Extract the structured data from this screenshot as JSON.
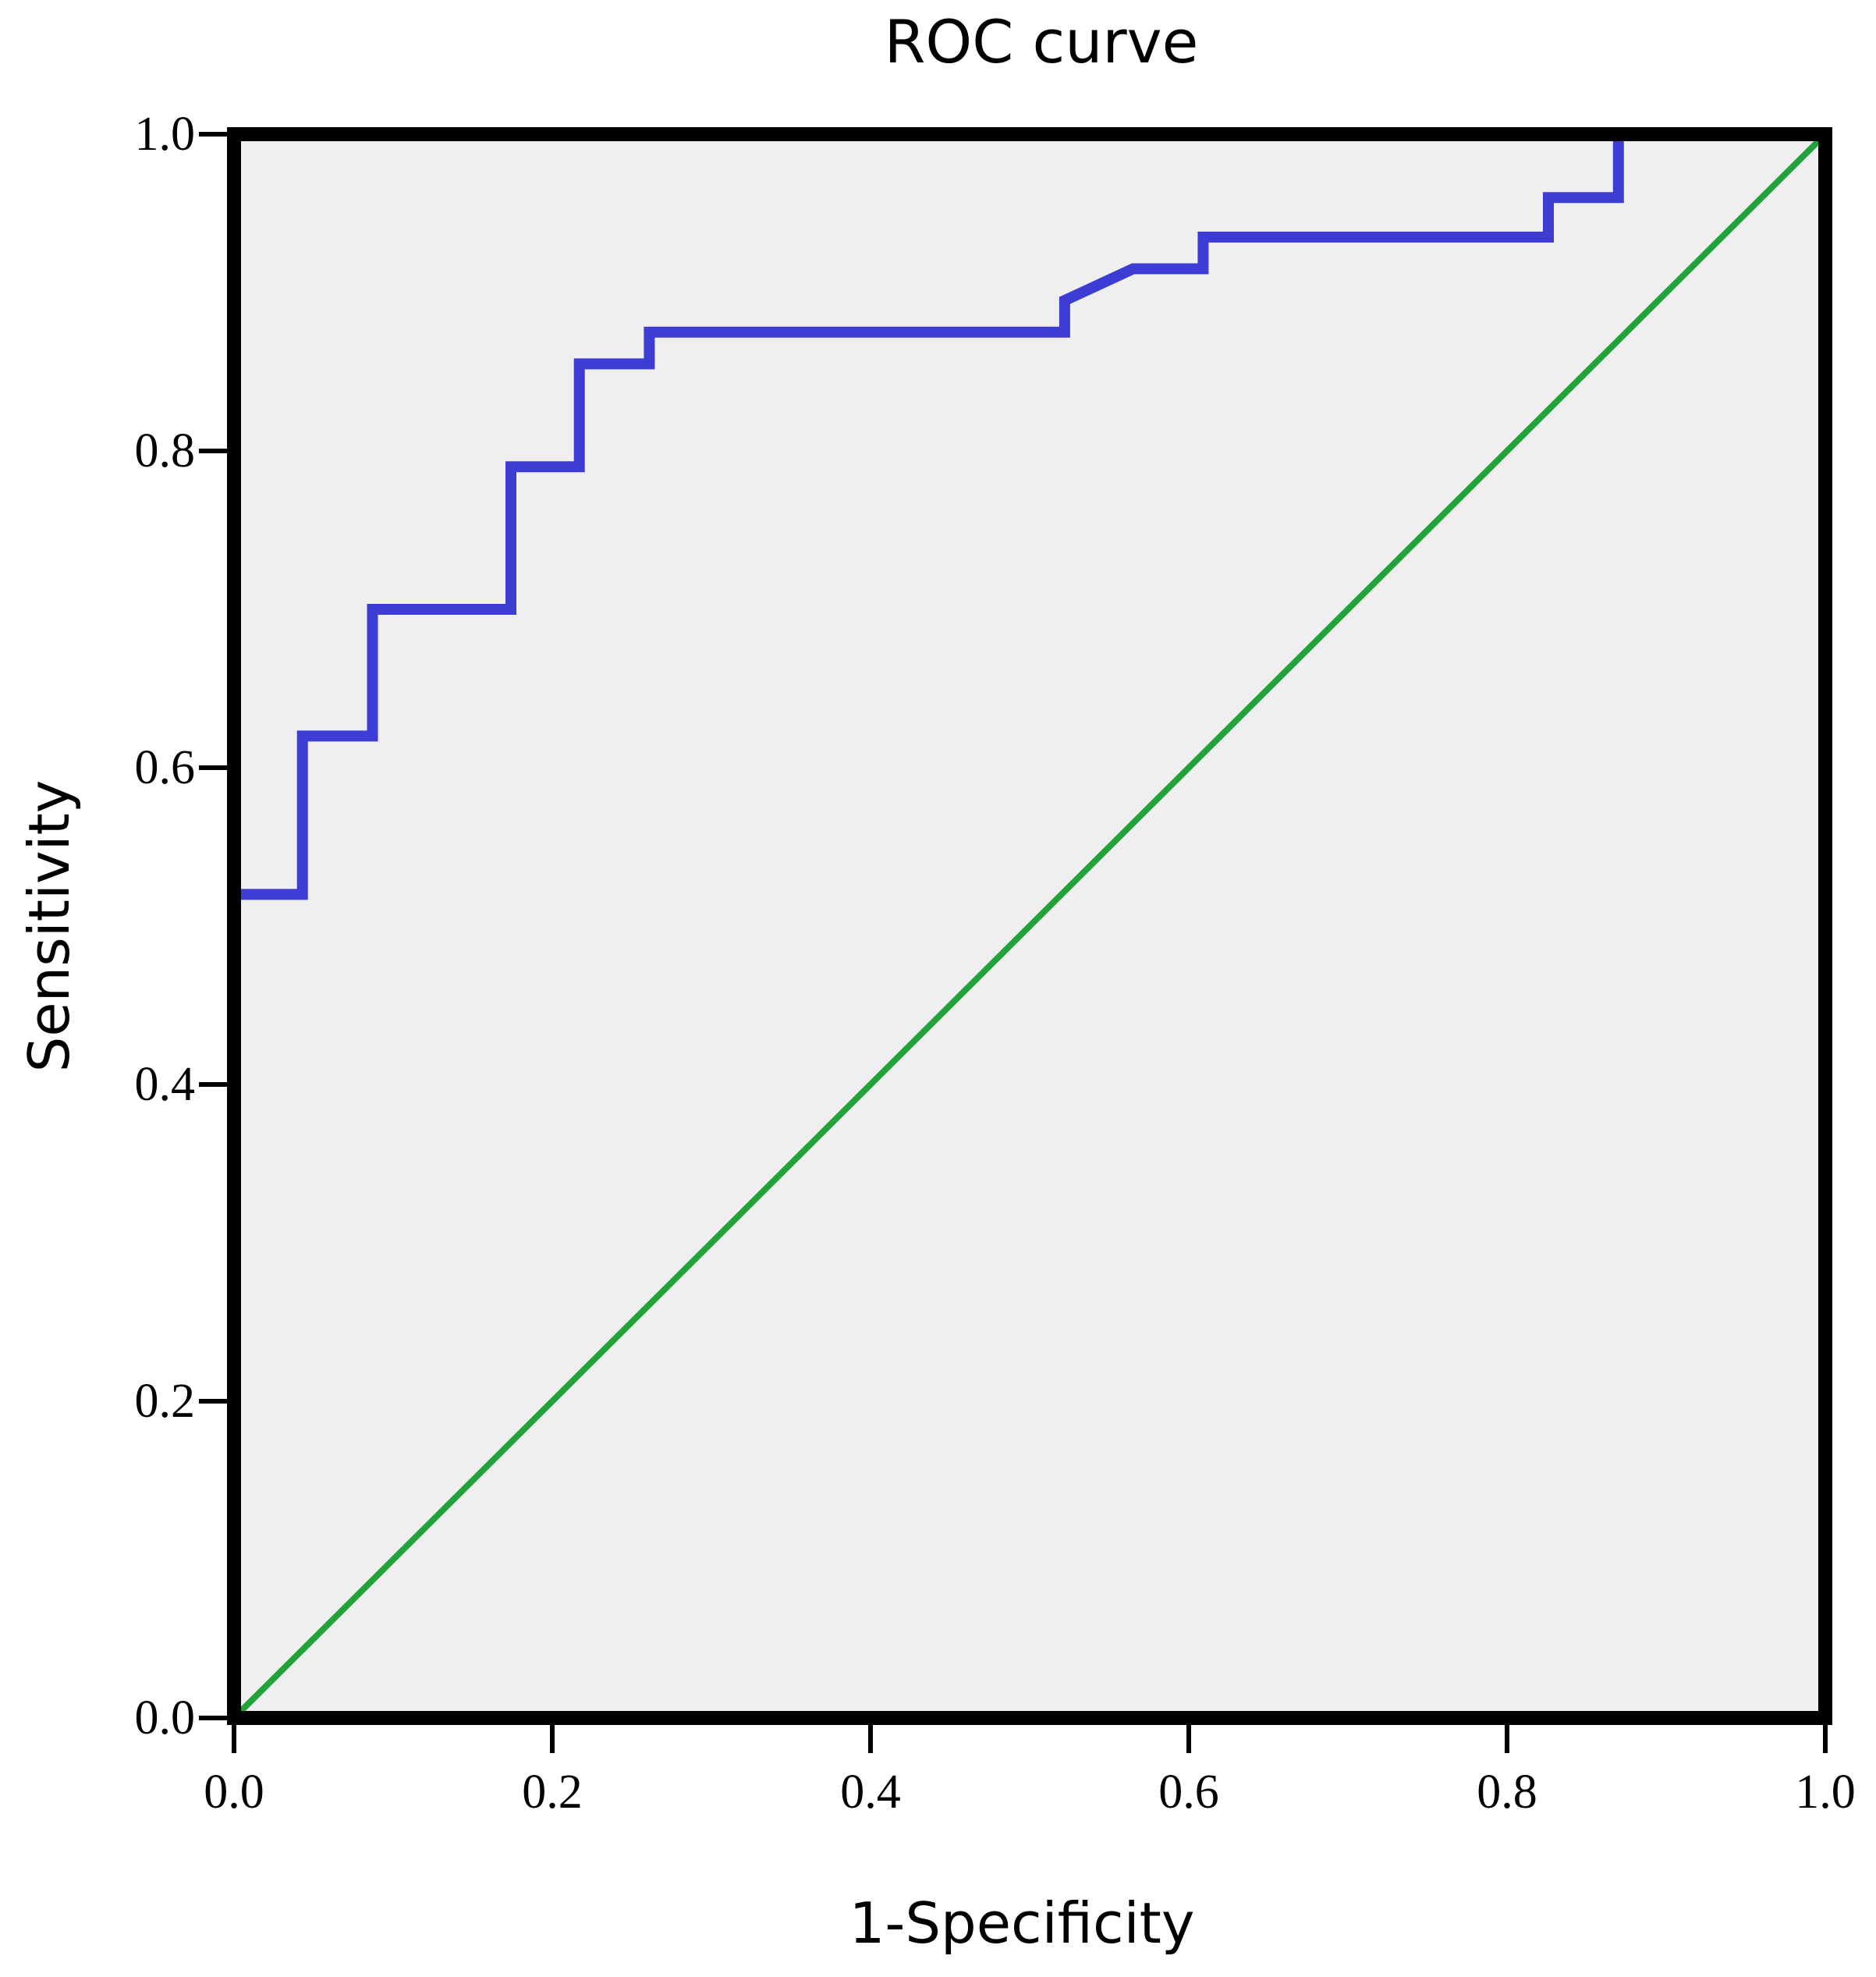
{
  "chart_data": {
    "type": "line",
    "title": "ROC curve",
    "xlabel": "1-Specificity",
    "ylabel": "Sensitivity",
    "xlim": [
      0,
      1
    ],
    "ylim": [
      0,
      1
    ],
    "xticks": [
      "0.0",
      "0.2",
      "0.4",
      "0.6",
      "0.8",
      "1.0"
    ],
    "yticks": [
      "0.0",
      "0.2",
      "0.4",
      "0.6",
      "0.8",
      "1.0"
    ],
    "grid": false,
    "legend": "none",
    "plot_background": "#f0eff0",
    "series": [
      {
        "color": "#3d3dd6",
        "x": [
          0.0,
          0.043,
          0.043,
          0.087,
          0.087,
          0.174,
          0.174,
          0.217,
          0.217,
          0.261,
          0.261,
          0.522,
          0.522,
          0.565,
          0.609,
          0.609,
          0.826,
          0.826,
          0.87,
          0.87
        ],
        "y": [
          0.52,
          0.52,
          0.62,
          0.62,
          0.7,
          0.7,
          0.79,
          0.79,
          0.855,
          0.855,
          0.875,
          0.875,
          0.895,
          0.915,
          0.915,
          0.935,
          0.935,
          0.96,
          0.96,
          1.0
        ]
      },
      {
        "color": "#22a33a",
        "x": [
          0.0,
          1.0
        ],
        "y": [
          0.0,
          1.0
        ]
      }
    ]
  }
}
